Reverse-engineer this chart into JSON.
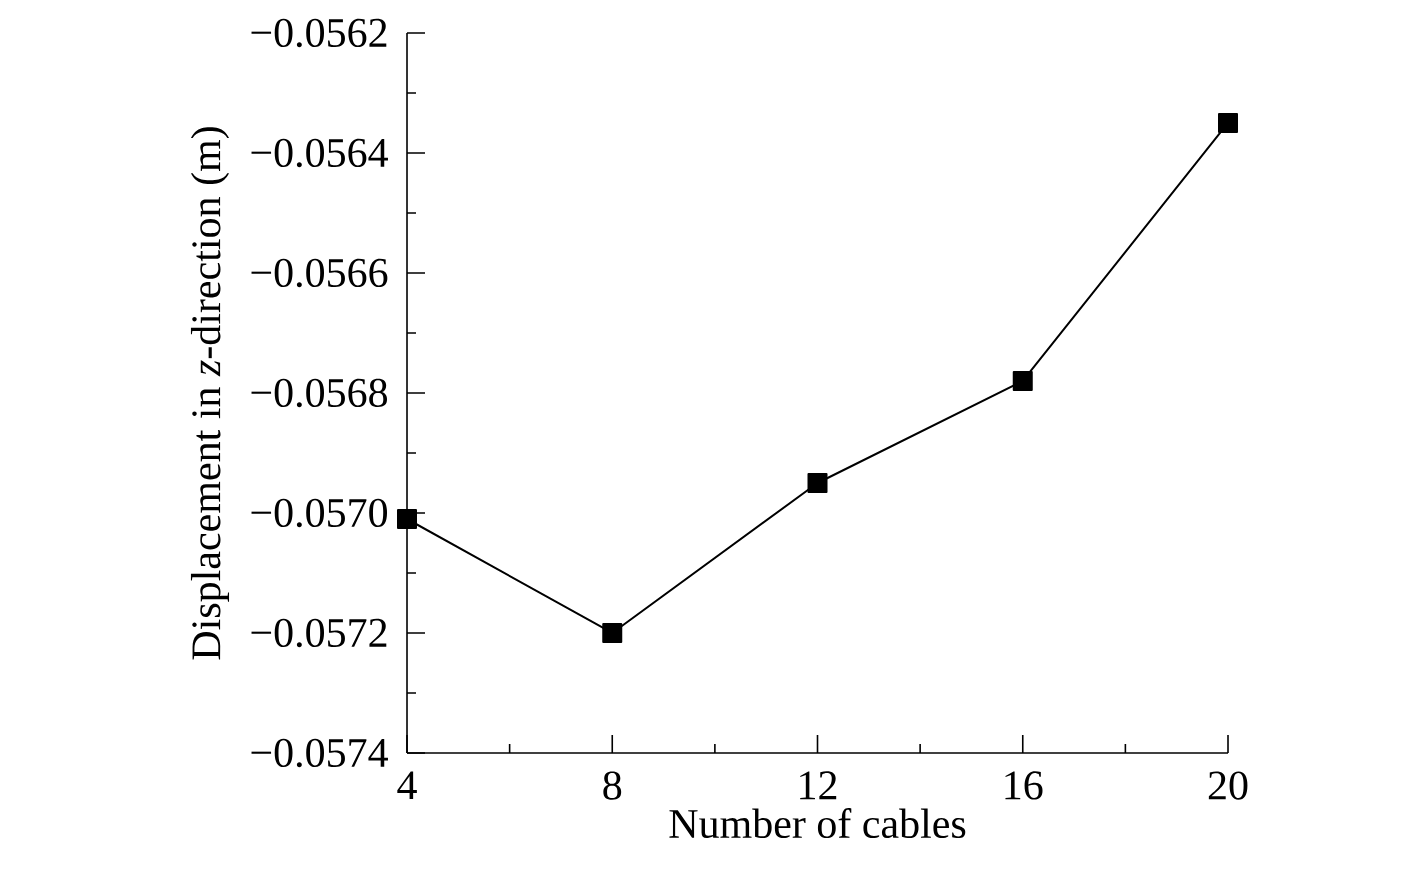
{
  "chart_data": {
    "type": "line",
    "xlabel": "Number of cables",
    "ylabel": "Displacement in *z*-direction (m)",
    "x": [
      4,
      8,
      12,
      16,
      20
    ],
    "series": [
      {
        "color": "#000000",
        "values": [
          -0.05701,
          -0.0572,
          -0.05695,
          -0.05678,
          -0.05635
        ]
      }
    ],
    "xlim": [
      4,
      20
    ],
    "xticks": [
      4,
      {
        "value": 6,
        "label": null
      },
      8,
      {
        "value": 10,
        "label": null
      },
      12,
      {
        "value": 14,
        "label": null
      },
      16,
      {
        "value": 18,
        "label": null
      },
      20
    ],
    "ylim": [
      -0.0574,
      -0.0562
    ],
    "yticks": [
      {
        "value": -0.0574,
        "label": "−0.0574"
      },
      {
        "value": -0.0573,
        "label": null
      },
      {
        "value": -0.0572,
        "label": "−0.0572"
      },
      {
        "value": -0.0571,
        "label": null
      },
      {
        "value": -0.057,
        "label": "−0.0570"
      },
      {
        "value": -0.0569,
        "label": null
      },
      {
        "value": -0.0568,
        "label": "−0.0568"
      },
      {
        "value": -0.0567,
        "label": null
      },
      {
        "value": -0.0566,
        "label": "−0.0566"
      },
      {
        "value": -0.0565,
        "label": null
      },
      {
        "value": -0.0564,
        "label": "−0.0564"
      },
      {
        "value": -0.0563,
        "label": null
      },
      {
        "value": -0.0562,
        "label": "−0.0562"
      }
    ],
    "marker": "square",
    "line_style": "solid"
  }
}
